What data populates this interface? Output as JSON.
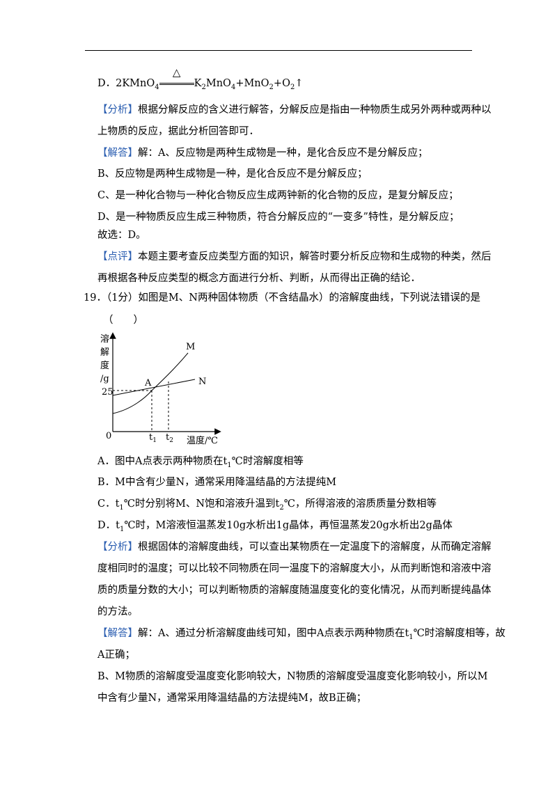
{
  "page": {
    "lines": [
      [
        {
          "text": "D．2KMnO"
        },
        {
          "sub": "4"
        },
        {
          "cond": "△"
        },
        {
          "text": "K"
        },
        {
          "sub": "2"
        },
        {
          "text": "MnO"
        },
        {
          "sub": "4"
        },
        {
          "text": "+MnO"
        },
        {
          "sub": "2"
        },
        {
          "text": "+O"
        },
        {
          "sub": "2"
        },
        {
          "text": "↑"
        }
      ],
      [
        {
          "tag": "【分析】"
        },
        {
          "text": "根据分解反应的含义进行解答，分解反应是指由一种物质生成另外两种或两种以"
        }
      ],
      [
        {
          "text": "上物质的反应，据此分析回答即可．"
        }
      ],
      [
        {
          "tag": "【解答】"
        },
        {
          "text": "解：A、反应物是两种生成物是一种，是化合反应不是分解反应；"
        }
      ],
      [
        {
          "text": "B、反应物是两种生成物是一种，是化合反应不是分解反应；"
        }
      ],
      [
        {
          "text": "C、是一种化合物与一种化合物反应生成两钟新的化合物的反应，是复分解反应；"
        }
      ],
      [
        {
          "text": "D、是一种物质反应生成三种物质，符合分解反应的“一变多”特性，是分解反应；"
        }
      ],
      [
        {
          "text": "故选：D。"
        }
      ],
      [
        {
          "tag": "【点评】"
        },
        {
          "text": "本题主要考查反应类型方面的知识，解答时要分析反应物和生成物的种类，然后"
        }
      ],
      [
        {
          "text": "再根据各种反应类型的概念方面进行分析、判断，从而得出正确的结论．"
        }
      ],
      [
        {
          "text": "19．（1分）如图是M、N两种固体物质（不含结晶水）的溶解度曲线，下列说法错误的是"
        }
      ],
      [
        {
          "text": "（　　）"
        }
      ],
      [
        {
          "text": "A．图中A点表示两种物质在t"
        },
        {
          "sub": "1"
        },
        {
          "text": "℃时溶解度相等"
        }
      ],
      [
        {
          "text": "B．M中含有少量N，通常采用降温结晶的方法提纯M"
        }
      ],
      [
        {
          "text": "C．t"
        },
        {
          "sub": "1"
        },
        {
          "text": "℃时分别将M、N饱和溶液升温到t"
        },
        {
          "sub": "2"
        },
        {
          "text": "℃，所得溶液的溶质质量分数相等"
        }
      ],
      [
        {
          "text": "D．t"
        },
        {
          "sub": "1"
        },
        {
          "text": "℃时，M溶液恒温蒸发10g水析出1g晶体，再恒温蒸发20g水析出2g晶体"
        }
      ],
      [
        {
          "tag": "【分析】"
        },
        {
          "text": "根据固体的溶解度曲线，可以查出某物质在一定温度下的溶解度，从而确定溶解"
        }
      ],
      [
        {
          "text": "度相同时的温度；可以比较不同物质在同一温度下的溶解度大小，从而判断饱和溶液中溶"
        }
      ],
      [
        {
          "text": "质的质量分数的大小；可以判断物质的溶解度随温度变化的变化情况，从而判断提纯晶体"
        }
      ],
      [
        {
          "text": "的方法。"
        }
      ],
      [
        {
          "tag": "【解答】"
        },
        {
          "text": "解：A、通过分析溶解度曲线可知，图中A点表示两种物质在t"
        },
        {
          "sub": "1"
        },
        {
          "text": "℃时溶解度相等，故"
        }
      ],
      [
        {
          "text": "A正确；"
        }
      ],
      [
        {
          "text": "B、M物质的溶解度受温度变化影响较大，N物质的溶解度受温度变化影响较小，所以M"
        }
      ],
      [
        {
          "text": "中含有少量N，通常采用降温结晶的方法提纯M，故B正确；"
        }
      ]
    ],
    "figure": {
      "y_label": [
        "溶",
        "解",
        "度",
        "/g"
      ],
      "y_value": "25",
      "origin": "0",
      "t1": [
        {
          "text": "t"
        },
        {
          "sub": "1"
        }
      ],
      "t2": [
        {
          "text": "t"
        },
        {
          "sub": "2"
        }
      ],
      "x_label": "温度/℃",
      "curve_m": "M",
      "curve_n": "N",
      "point": "A"
    }
  }
}
